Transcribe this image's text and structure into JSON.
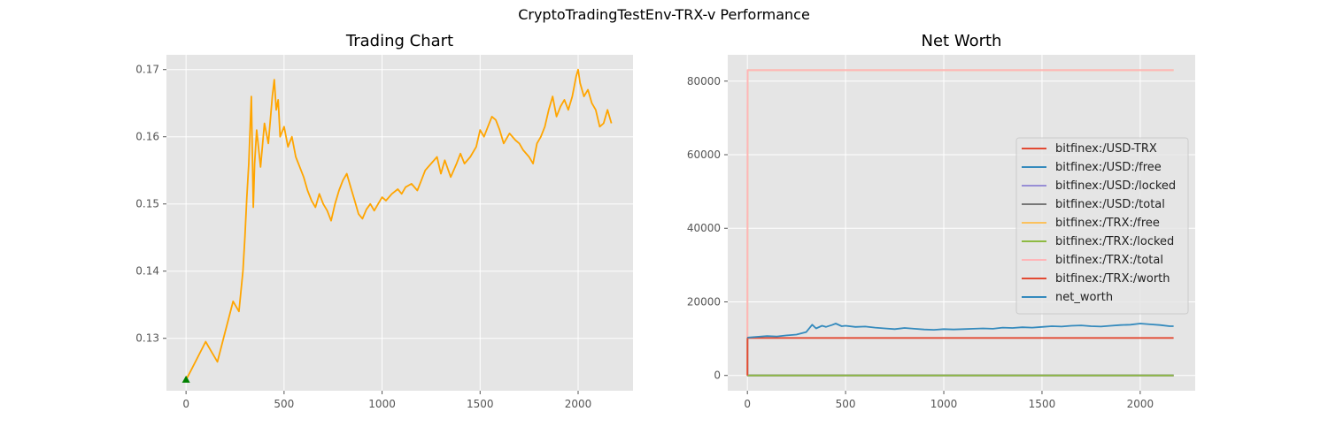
{
  "figure": {
    "suptitle": "CryptoTradingTestEnv-TRX-v Performance"
  },
  "colors": {
    "axes_bg": "#e5e5e5",
    "grid": "#ffffff",
    "tick_text": "#555555",
    "price": "#ffa500",
    "buy_marker": "#008000"
  },
  "chart_data": [
    {
      "type": "line",
      "title": "Trading Chart",
      "xlabel": "",
      "ylabel": "",
      "xlim": [
        -100,
        2280
      ],
      "ylim": [
        0.1222,
        0.1722
      ],
      "xticks": [
        0,
        500,
        1000,
        1500,
        2000
      ],
      "yticks": [
        0.13,
        0.14,
        0.15,
        0.16,
        0.17
      ],
      "ytick_labels": [
        "0.13",
        "0.14",
        "0.15",
        "0.16",
        "0.17"
      ],
      "grid": true,
      "series": [
        {
          "name": "price",
          "color": "#ffa500",
          "x": [
            0,
            30,
            60,
            100,
            130,
            160,
            200,
            240,
            270,
            290,
            300,
            310,
            320,
            333,
            343,
            350,
            360,
            380,
            400,
            420,
            440,
            450,
            460,
            470,
            480,
            500,
            520,
            540,
            560,
            580,
            600,
            620,
            640,
            660,
            680,
            700,
            720,
            740,
            760,
            780,
            800,
            820,
            840,
            860,
            880,
            900,
            920,
            940,
            960,
            980,
            1000,
            1020,
            1050,
            1080,
            1100,
            1120,
            1150,
            1180,
            1200,
            1220,
            1250,
            1280,
            1300,
            1320,
            1350,
            1380,
            1400,
            1420,
            1450,
            1480,
            1500,
            1520,
            1540,
            1560,
            1580,
            1600,
            1620,
            1650,
            1680,
            1700,
            1720,
            1750,
            1770,
            1790,
            1810,
            1830,
            1850,
            1870,
            1890,
            1910,
            1930,
            1950,
            1970,
            1990,
            2000,
            2010,
            2030,
            2050,
            2070,
            2090,
            2110,
            2130,
            2150,
            2170
          ],
          "y": [
            0.1238,
            0.1255,
            0.1272,
            0.1295,
            0.128,
            0.1265,
            0.131,
            0.1355,
            0.134,
            0.14,
            0.145,
            0.151,
            0.156,
            0.166,
            0.1495,
            0.156,
            0.161,
            0.1555,
            0.162,
            0.159,
            0.166,
            0.1685,
            0.164,
            0.1655,
            0.16,
            0.1615,
            0.1585,
            0.16,
            0.157,
            0.1555,
            0.154,
            0.152,
            0.1505,
            0.1495,
            0.1515,
            0.15,
            0.149,
            0.1475,
            0.15,
            0.152,
            0.1535,
            0.1545,
            0.1525,
            0.1505,
            0.1485,
            0.1478,
            0.1492,
            0.15,
            0.149,
            0.15,
            0.151,
            0.1505,
            0.1515,
            0.1522,
            0.1515,
            0.1525,
            0.153,
            0.152,
            0.1535,
            0.155,
            0.156,
            0.157,
            0.1545,
            0.1565,
            0.154,
            0.156,
            0.1575,
            0.156,
            0.157,
            0.1585,
            0.161,
            0.16,
            0.1615,
            0.163,
            0.1625,
            0.161,
            0.159,
            0.1605,
            0.1595,
            0.159,
            0.158,
            0.157,
            0.156,
            0.159,
            0.16,
            0.1615,
            0.164,
            0.166,
            0.163,
            0.1645,
            0.1655,
            0.164,
            0.166,
            0.169,
            0.17,
            0.168,
            0.166,
            0.167,
            0.165,
            0.164,
            0.1615,
            0.162,
            0.164,
            0.162
          ]
        }
      ],
      "markers": [
        {
          "name": "buy",
          "x": 0,
          "y": 0.1238,
          "shape": "triangle-up",
          "color": "#008000"
        }
      ]
    },
    {
      "type": "line",
      "title": "Net Worth",
      "xlabel": "",
      "ylabel": "",
      "xlim": [
        -100,
        2280
      ],
      "ylim": [
        -4150,
        87150
      ],
      "xticks": [
        0,
        500,
        1000,
        1500,
        2000
      ],
      "yticks": [
        0,
        20000,
        40000,
        60000,
        80000
      ],
      "ytick_labels": [
        "0",
        "20000",
        "40000",
        "60000",
        "80000"
      ],
      "grid": true,
      "legend_position": "center-right",
      "series": [
        {
          "name": "bitfinex:/USD-TRX",
          "color": "#e24a33",
          "x": [
            0,
            2170
          ],
          "y": [
            0.12,
            0.16
          ]
        },
        {
          "name": "bitfinex:/USD:/free",
          "color": "#348abd",
          "x": [
            0,
            1,
            2170
          ],
          "y": [
            10000,
            0,
            0
          ]
        },
        {
          "name": "bitfinex:/USD:/locked",
          "color": "#988ed5",
          "x": [
            0,
            2170
          ],
          "y": [
            0,
            0
          ]
        },
        {
          "name": "bitfinex:/USD:/total",
          "color": "#777777",
          "x": [
            0,
            1,
            2170
          ],
          "y": [
            10000,
            0,
            0
          ]
        },
        {
          "name": "bitfinex:/TRX:/free",
          "color": "#fbc15e",
          "x": [
            0,
            1,
            2170
          ],
          "y": [
            0,
            83000,
            83000
          ]
        },
        {
          "name": "bitfinex:/TRX:/locked",
          "color": "#8eba42",
          "x": [
            0,
            2170
          ],
          "y": [
            0,
            0
          ]
        },
        {
          "name": "bitfinex:/TRX:/total",
          "color": "#ffb5b8",
          "x": [
            0,
            1,
            2170
          ],
          "y": [
            0,
            83000,
            83000
          ]
        },
        {
          "name": "bitfinex:/TRX:/worth",
          "color": "#e24a33",
          "x": [
            0,
            1,
            2170
          ],
          "y": [
            0,
            10200,
            10200
          ]
        },
        {
          "name": "net_worth",
          "color": "#348abd",
          "x": [
            0,
            50,
            100,
            150,
            200,
            250,
            300,
            330,
            350,
            380,
            400,
            430,
            450,
            480,
            500,
            550,
            600,
            650,
            700,
            750,
            800,
            850,
            900,
            950,
            1000,
            1050,
            1100,
            1150,
            1200,
            1250,
            1300,
            1350,
            1400,
            1450,
            1500,
            1550,
            1600,
            1650,
            1700,
            1750,
            1800,
            1850,
            1900,
            1950,
            2000,
            2050,
            2100,
            2150,
            2170
          ],
          "y": [
            10300,
            10500,
            10700,
            10600,
            10900,
            11100,
            11800,
            13800,
            12800,
            13500,
            13200,
            13700,
            14100,
            13400,
            13500,
            13200,
            13300,
            13000,
            12800,
            12600,
            12900,
            12700,
            12500,
            12400,
            12600,
            12500,
            12600,
            12700,
            12800,
            12700,
            13000,
            12900,
            13100,
            13000,
            13200,
            13400,
            13300,
            13500,
            13600,
            13400,
            13300,
            13500,
            13700,
            13800,
            14100,
            13900,
            13700,
            13400,
            13400
          ]
        }
      ]
    }
  ]
}
